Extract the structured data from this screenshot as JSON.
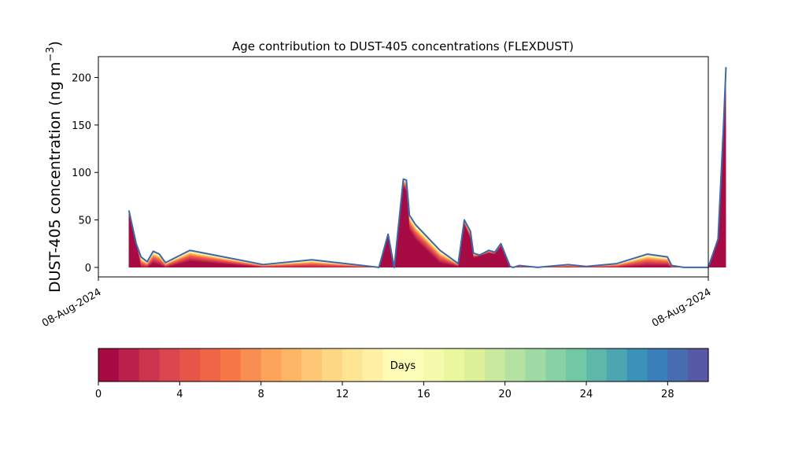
{
  "chart_data": [
    {
      "type": "area",
      "title": "Age contribution to DUST-405 concentrations (FLEXDUST)",
      "ylabel": "DUST-405 concentration (ng m",
      "ylabel_sup": "−3",
      "ylabel_close": ")",
      "ylim": [
        -10,
        222
      ],
      "yticks": [
        0,
        50,
        100,
        150,
        200
      ],
      "xtick_labels": [
        "08-Aug-2024",
        "08-Aug-2024"
      ],
      "x_range_fraction": [
        0.05,
        0.955
      ],
      "stacked": true,
      "age_bin_count": 30,
      "total_line_color": "#3c67a8",
      "x": [
        0.05,
        0.062,
        0.07,
        0.08,
        0.09,
        0.1,
        0.11,
        0.15,
        0.27,
        0.35,
        0.46,
        0.475,
        0.485,
        0.5,
        0.505,
        0.51,
        0.52,
        0.56,
        0.59,
        0.6,
        0.61,
        0.615,
        0.625,
        0.64,
        0.65,
        0.66,
        0.675,
        0.68,
        0.69,
        0.72,
        0.77,
        0.8,
        0.85,
        0.9,
        0.933,
        0.94,
        0.96,
        0.99,
        1.0,
        1.016,
        1.025,
        1.029
      ],
      "total": [
        60,
        25,
        11,
        6,
        17,
        14,
        5,
        18,
        3,
        8,
        0,
        35,
        0,
        93,
        92,
        55,
        45,
        18,
        4,
        50,
        38,
        15,
        13,
        18,
        16,
        25,
        1,
        0,
        2,
        0,
        3,
        1,
        4,
        14,
        11,
        2,
        0,
        0,
        0,
        30,
        150,
        211
      ],
      "fresh": [
        60,
        25,
        0,
        0,
        5,
        3,
        0,
        7,
        0,
        0,
        0,
        35,
        0,
        85,
        80,
        40,
        30,
        5,
        1,
        45,
        30,
        10,
        12,
        15,
        14,
        22,
        0,
        0,
        0,
        0,
        0,
        0,
        0,
        2,
        2,
        0,
        0,
        0,
        0,
        30,
        150,
        190
      ]
    },
    {
      "type": "colorbar",
      "label": "Days",
      "range": [
        0,
        30
      ],
      "tick_values": [
        0,
        4,
        8,
        12,
        16,
        20,
        24,
        28
      ],
      "tick_labels": [
        "0",
        "4",
        "8",
        "12",
        "16",
        "20",
        "24",
        "28"
      ],
      "colormap": "Spectral",
      "n_bins": 30
    }
  ]
}
